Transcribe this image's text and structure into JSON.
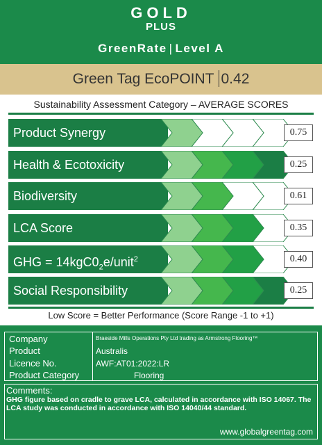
{
  "header": {
    "line1": "GOLD",
    "line2": "PLUS",
    "line3_left": "GreenRate",
    "line3_sep": "|",
    "line3_right": "Level",
    "line3_level": "A"
  },
  "ecopoint": {
    "label": "Green Tag EcoPOINT",
    "value": "0.42"
  },
  "category_title": "Sustainability Assessment Category – AVERAGE SCORES",
  "categories": [
    {
      "label": "Product Synergy",
      "score": "0.75",
      "filled": 1
    },
    {
      "label": "Health & Ecotoxicity",
      "score": "0.25",
      "filled": 4
    },
    {
      "label": "Biodiversity",
      "score": "0.61",
      "filled": 2
    },
    {
      "label": "LCA Score",
      "score": "0.35",
      "filled": 3
    },
    {
      "label_main": "GHG = 14kgC0",
      "label_sub": "2",
      "label_mid": "e/unit",
      "label_sup": "2",
      "score": "0.40",
      "filled": 3
    },
    {
      "label": "Social Responsibility",
      "score": "0.25",
      "filled": 4
    }
  ],
  "chevron_colors": [
    "#8fd18f",
    "#45b74d",
    "#22a046",
    "#1b7e45"
  ],
  "footnote": "Low Score = Better Performance (Score Range -1 to +1)",
  "info": {
    "company_key": "Company",
    "product_key": "Product",
    "licence_key": "Licence No.",
    "category_key": "Product Category",
    "company_value": "Braeside Mills Operations Pty Ltd trading as Armstrong Flooring™",
    "product_value": "Australis",
    "licence_value": "AWF:AT01:2022:LR",
    "category_value": "Flooring"
  },
  "comments": {
    "title": "Comments:",
    "body": "GHG figure based on cradle to grave LCA, calculated in accordance with ISO 14067. The LCA study was conducted in accordance with ISO 14040/44 standard.",
    "url": "www.globalgreentag.com"
  }
}
